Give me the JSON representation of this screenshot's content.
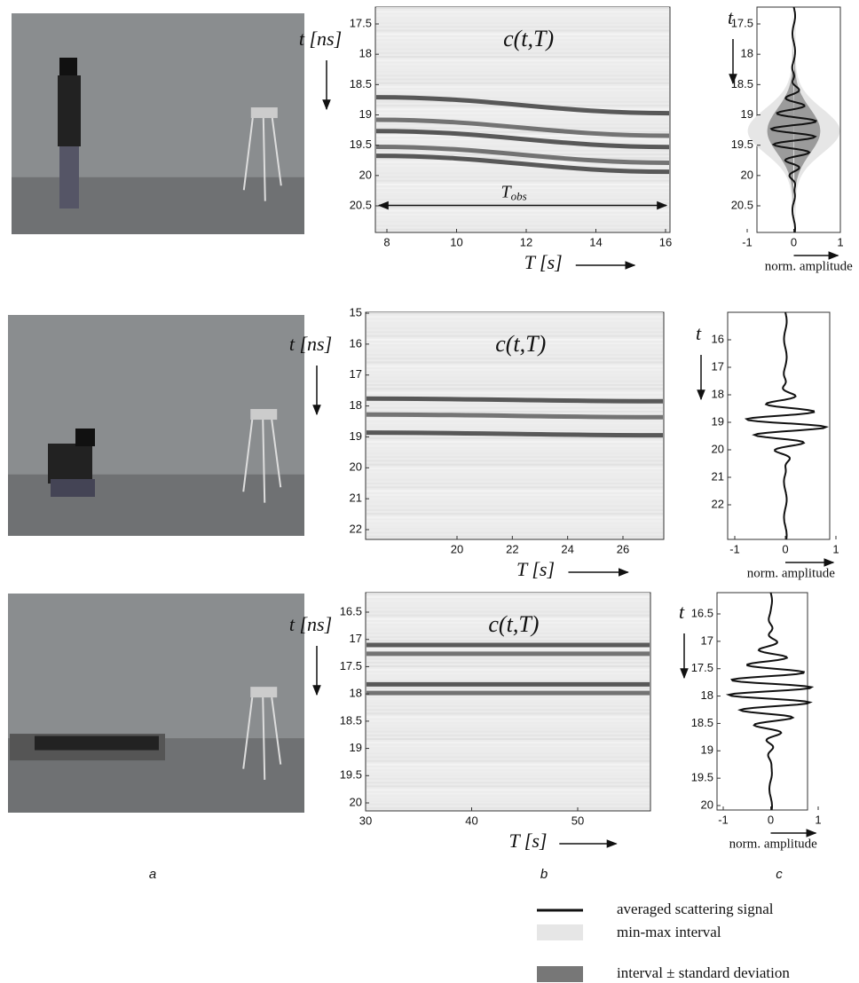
{
  "panels": [
    {
      "heatmap": {
        "label": "c(t,T)",
        "y_axis": "t [ns]",
        "x_axis": "T [s]",
        "yticks": [
          17.5,
          18,
          18.5,
          19,
          19.5,
          20,
          20.5
        ],
        "xticks": [
          8,
          10,
          12,
          14,
          16
        ],
        "annotation": {
          "base": "T",
          "sub": "obs"
        }
      },
      "profile": {
        "y_axis": "t",
        "x_axis": "norm. amplitude",
        "yticks": [
          17.5,
          18,
          18.5,
          19,
          19.5,
          20,
          20.5
        ],
        "xticks": [
          -1,
          0,
          1
        ]
      }
    },
    {
      "heatmap": {
        "label": "c(t,T)",
        "y_axis": "t [ns]",
        "x_axis": "T [s]",
        "yticks": [
          15,
          16,
          17,
          18,
          19,
          20,
          21,
          22
        ],
        "xticks": [
          20,
          22,
          24,
          26
        ]
      },
      "profile": {
        "y_axis": "t",
        "x_axis": "norm. amplitude",
        "yticks": [
          16,
          17,
          18,
          19,
          20,
          21,
          22
        ],
        "xticks": [
          -1,
          0,
          1
        ]
      }
    },
    {
      "heatmap": {
        "label": "c(t,T)",
        "y_axis": "t [ns]",
        "x_axis": "T [s]",
        "yticks": [
          16.5,
          17,
          17.5,
          18,
          18.5,
          19,
          19.5,
          20
        ],
        "xticks": [
          30,
          40,
          50
        ]
      },
      "profile": {
        "y_axis": "t",
        "x_axis": "norm. amplitude",
        "yticks": [
          16.5,
          17,
          17.5,
          18,
          18.5,
          19,
          19.5,
          20
        ],
        "xticks": [
          -1,
          0,
          1
        ]
      }
    }
  ],
  "captions": [
    "a",
    "b",
    "c"
  ],
  "legend": [
    "averaged scattering signal",
    "min-max interval",
    "interval ± standard deviation"
  ]
}
